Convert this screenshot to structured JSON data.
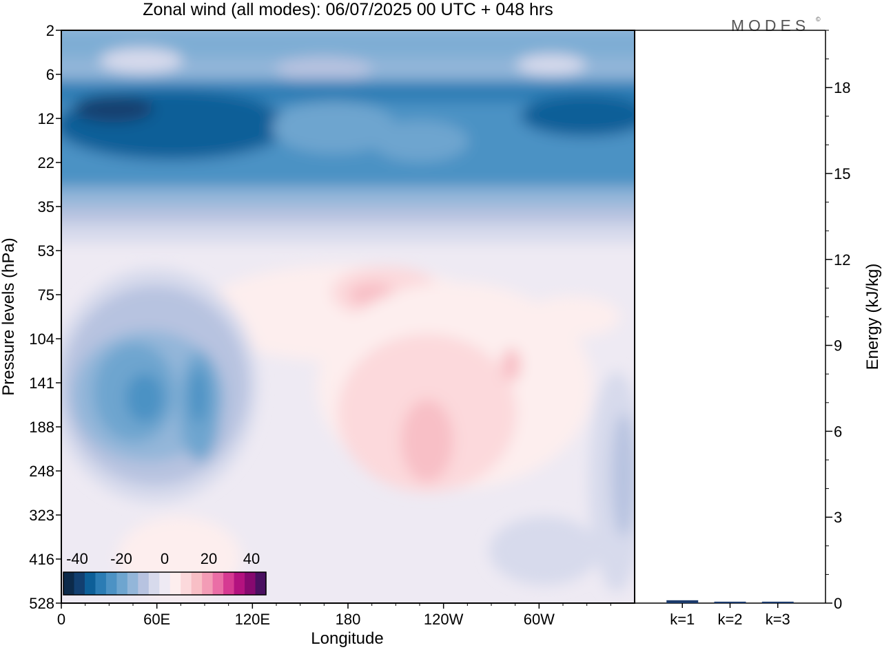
{
  "title": "Zonal wind (all modes):  06/07/2025  00 UTC  + 048 hrs",
  "logo": "MODES",
  "logo_mark": "©",
  "chart_data": [
    {
      "type": "heatmap",
      "title": "Zonal wind (all modes):  06/07/2025  00 UTC  + 048 hrs",
      "xlabel": "Longitude",
      "ylabel": "Pressure levels (hPa)",
      "x_ticks": [
        "0",
        "60E",
        "120E",
        "180",
        "120W",
        "60W"
      ],
      "y_ticks": [
        "2",
        "6",
        "12",
        "22",
        "35",
        "53",
        "75",
        "104",
        "141",
        "188",
        "248",
        "323",
        "416",
        "528"
      ],
      "y_reversed": true,
      "colorbar": {
        "labels": [
          "-40",
          "-20",
          "0",
          "20",
          "40"
        ],
        "range": [
          -40,
          40
        ],
        "levels": 19,
        "colors": [
          "#0c2a4a",
          "#123f70",
          "#0d5f98",
          "#2b7cb4",
          "#4c92c4",
          "#6ea5cf",
          "#93b6d9",
          "#b7c3e0",
          "#d7daec",
          "#eeeaf3",
          "#fdeeee",
          "#fcd9dc",
          "#f8bfc6",
          "#f39cb6",
          "#ea6ea6",
          "#d63a92",
          "#b3127f",
          "#86096f",
          "#4a1060"
        ]
      },
      "grid": false,
      "fields": {
        "stratosphere_upper": "easterly, -5 to -15",
        "stratosphere_core": "easterly jet about -25 to -35 near 12 hPa",
        "tropopause": "near zero around 53 hPa",
        "upper_troposphere_east": "easterly -10 to -25 around 60E-100E, 100-250 hPa",
        "upper_troposphere_west": "westerly +5 to +12 around 160E-60W, 60-280 hPa",
        "lower_troposphere": "weak, -5 to +5"
      }
    },
    {
      "type": "bar",
      "ylabel": "Energy (kJ/kg)",
      "categories": [
        "k=1",
        "k=2",
        "k=3"
      ],
      "values": [
        0.1,
        0.05,
        0.05
      ],
      "ylim": [
        0,
        20
      ],
      "y_ticks": [
        "0",
        "3",
        "6",
        "9",
        "12",
        "15",
        "18"
      ]
    }
  ]
}
